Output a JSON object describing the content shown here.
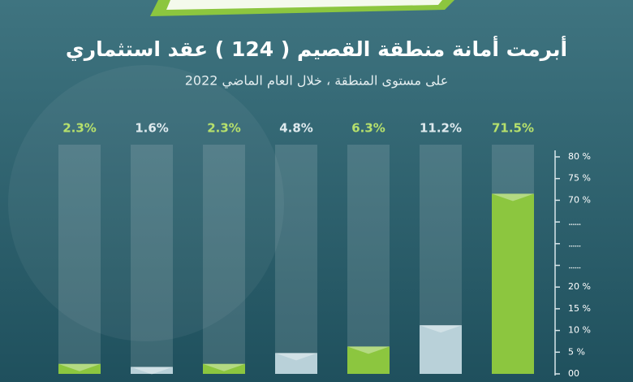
{
  "chart_data": {
    "type": "bar",
    "title": "أبرمت أمانة منطقة القصيم ( 124 ) عقد استثماري",
    "subtitle": "على مستوى المنطقة ، خلال العام الماضي 2022",
    "values": [
      2.3,
      1.6,
      2.3,
      4.8,
      6.3,
      11.2,
      71.5
    ],
    "value_labels": [
      "2.3%",
      "1.6%",
      "2.3%",
      "4.8%",
      "6.3%",
      "11.2%",
      "71.5%"
    ],
    "colors": [
      "#8cc63f",
      "#b9d1d9",
      "#8cc63f",
      "#b9d1d9",
      "#8cc63f",
      "#b9d1d9",
      "#8cc63f"
    ],
    "ylim": [
      0,
      80
    ],
    "yticks": [
      {
        "value": 0,
        "label": "00"
      },
      {
        "value": 5,
        "label": "5 %"
      },
      {
        "value": 10,
        "label": "10 %"
      },
      {
        "value": 15,
        "label": "15 %"
      },
      {
        "value": 20,
        "label": "20 %"
      },
      {
        "value": 70,
        "label": "70 %"
      },
      {
        "value": 75,
        "label": "75 %"
      },
      {
        "value": 80,
        "label": "80 %"
      }
    ]
  }
}
